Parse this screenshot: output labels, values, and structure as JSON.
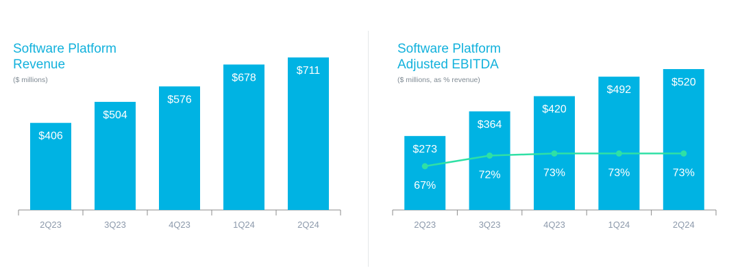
{
  "chart_data": [
    {
      "type": "bar",
      "title_line1": "Software Platform",
      "title_line2": "Revenue",
      "subtitle": "($ millions)",
      "categories": [
        "2Q23",
        "3Q23",
        "4Q23",
        "1Q24",
        "2Q24"
      ],
      "values": [
        406,
        504,
        576,
        678,
        711
      ],
      "value_labels": [
        "$406",
        "$504",
        "$576",
        "$678",
        "$711"
      ],
      "ylim": [
        0,
        711
      ],
      "bar_color": "#00b3e3"
    },
    {
      "type": "bar",
      "title_line1": "Software Platform",
      "title_line2": "Adjusted EBITDA",
      "subtitle": "($ millions, as % revenue)",
      "categories": [
        "2Q23",
        "3Q23",
        "4Q23",
        "1Q24",
        "2Q24"
      ],
      "values": [
        273,
        364,
        420,
        492,
        520
      ],
      "value_labels": [
        "$273",
        "$364",
        "$420",
        "$492",
        "$520"
      ],
      "ylim": [
        0,
        520
      ],
      "bar_color": "#00b3e3",
      "line_series": {
        "values": [
          67,
          72,
          73,
          73,
          73
        ],
        "labels": [
          "67%",
          "72%",
          "73%",
          "73%",
          "73%"
        ],
        "color": "#2fe0a5"
      }
    }
  ]
}
